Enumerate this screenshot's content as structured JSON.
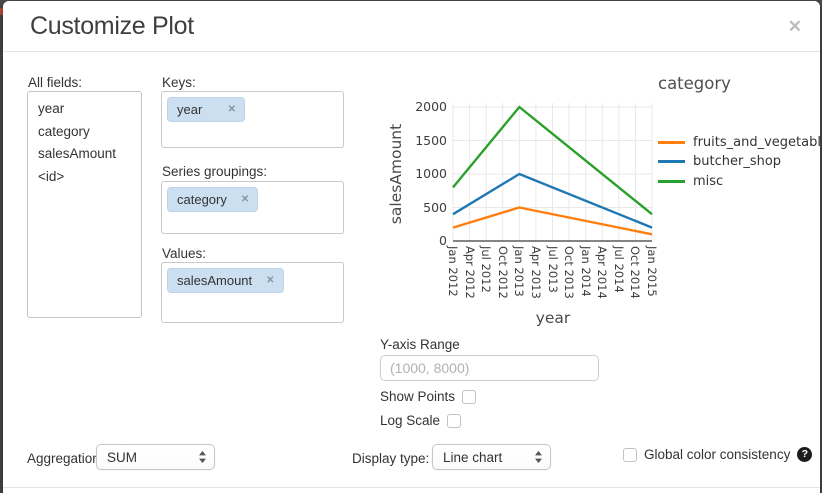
{
  "dialog": {
    "title": "Customize Plot",
    "close_glyph": "✕"
  },
  "icons": {
    "remove_glyph": "✕"
  },
  "fields_panel": {
    "label": "All fields:",
    "items": [
      "year",
      "category",
      "salesAmount",
      "<id>"
    ]
  },
  "mapping_panel": {
    "keys": {
      "label": "Keys:",
      "tags": [
        {
          "text": "year"
        }
      ]
    },
    "series_groupings": {
      "label": "Series groupings:",
      "tags": [
        {
          "text": "category"
        }
      ]
    },
    "values": {
      "label": "Values:",
      "tags": [
        {
          "text": "salesAmount"
        }
      ]
    }
  },
  "options": {
    "y_axis_range": {
      "label": "Y-axis Range",
      "placeholder": "(1000, 8000)",
      "value": ""
    },
    "show_points": {
      "label": "Show Points",
      "checked": false
    },
    "log_scale": {
      "label": "Log Scale",
      "checked": false
    }
  },
  "footer_controls": {
    "aggregation": {
      "label": "Aggregation:",
      "value": "SUM"
    },
    "display_type": {
      "label": "Display type:",
      "value": "Line chart"
    },
    "global_color": {
      "label": "Global color consistency",
      "checked": false,
      "help_glyph": "?"
    }
  },
  "chart_data": {
    "type": "line",
    "legend_title": "category",
    "xlabel": "year",
    "ylabel": "salesAmount",
    "x_categories": [
      "Jan 2012",
      "Apr 2012",
      "Jul 2012",
      "Oct 2012",
      "Jan 2013",
      "Apr 2013",
      "Jul 2013",
      "Oct 2013",
      "Jan 2014",
      "Apr 2014",
      "Jul 2014",
      "Oct 2014",
      "Jan 2015"
    ],
    "y_ticks": [
      0,
      500,
      1000,
      1500,
      2000
    ],
    "ylim": [
      0,
      2000
    ],
    "grid": true,
    "legend_position": "right",
    "series": [
      {
        "name": "fruits_and_vegetables",
        "color": "#ff7f0e",
        "points": [
          {
            "x": "Jan 2012",
            "y": 200
          },
          {
            "x": "Jan 2013",
            "y": 500
          },
          {
            "x": "Jan 2015",
            "y": 100
          }
        ]
      },
      {
        "name": "butcher_shop",
        "color": "#1f77b4",
        "points": [
          {
            "x": "Jan 2012",
            "y": 400
          },
          {
            "x": "Jan 2013",
            "y": 1000
          },
          {
            "x": "Jan 2015",
            "y": 200
          }
        ]
      },
      {
        "name": "misc",
        "color": "#2ca02c",
        "points": [
          {
            "x": "Jan 2012",
            "y": 800
          },
          {
            "x": "Jan 2013",
            "y": 2000
          },
          {
            "x": "Jan 2015",
            "y": 400
          }
        ]
      }
    ]
  }
}
